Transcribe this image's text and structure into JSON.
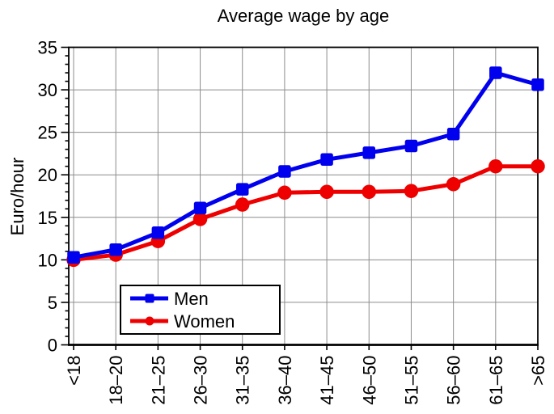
{
  "chart_data": {
    "type": "line",
    "title": "Average wage by age",
    "xlabel": "",
    "ylabel": "Euro/hour",
    "categories": [
      "<18",
      "18–20",
      "21–25",
      "26–30",
      "31–35",
      "36–40",
      "41–45",
      "46–50",
      "51–55",
      "56–60",
      "61–65",
      ">65"
    ],
    "series": [
      {
        "name": "Men",
        "color": "#0000ee",
        "marker": "square",
        "values": [
          10.3,
          11.2,
          13.2,
          16.1,
          18.3,
          20.4,
          21.8,
          22.6,
          23.4,
          24.8,
          32.0,
          30.6
        ]
      },
      {
        "name": "Women",
        "color": "#ee0000",
        "marker": "circle",
        "values": [
          10.0,
          10.6,
          12.2,
          14.8,
          16.5,
          17.9,
          18.0,
          18.0,
          18.1,
          18.9,
          21.0,
          21.0
        ]
      }
    ],
    "ylim": [
      0,
      35
    ],
    "ytick_step": 5,
    "y_minor_step": 1,
    "y_tick_labels": [
      "0",
      "5",
      "10",
      "15",
      "20",
      "25",
      "30",
      "35"
    ],
    "grid": true,
    "grid_color": "#8c8c8c",
    "axis_color": "#000000",
    "background": "#ffffff",
    "legend_position": "bottom-left",
    "legend_labels": [
      "Men",
      "Women"
    ]
  }
}
